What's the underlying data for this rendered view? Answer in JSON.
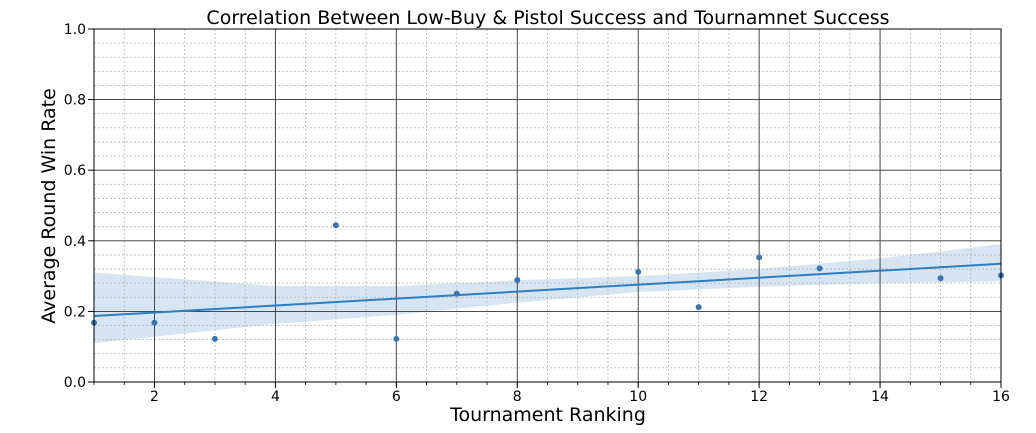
{
  "chart_data": {
    "type": "scatter",
    "title": "Correlation Between Low-Buy & Pistol Success and Tournamnet Success",
    "xlabel": "Tournament Ranking",
    "ylabel": "Average Round Win Rate",
    "xlim": [
      1,
      16
    ],
    "ylim": [
      0.0,
      1.0
    ],
    "xticks": [
      "2",
      "4",
      "6",
      "8",
      "10",
      "12",
      "14",
      "16"
    ],
    "yticks": [
      "0.0",
      "0.2",
      "0.4",
      "0.6",
      "0.8",
      "1.0"
    ],
    "grid": true,
    "series": [
      {
        "points": [
          {
            "x": 1,
            "y": 0.168
          },
          {
            "x": 2,
            "y": 0.168
          },
          {
            "x": 3,
            "y": 0.122
          },
          {
            "x": 5,
            "y": 0.444
          },
          {
            "x": 6,
            "y": 0.122
          },
          {
            "x": 7,
            "y": 0.25
          },
          {
            "x": 8,
            "y": 0.289
          },
          {
            "x": 10,
            "y": 0.312
          },
          {
            "x": 11,
            "y": 0.212
          },
          {
            "x": 12,
            "y": 0.353
          },
          {
            "x": 13,
            "y": 0.322
          },
          {
            "x": 15,
            "y": 0.294
          },
          {
            "x": 16,
            "y": 0.302
          }
        ]
      }
    ],
    "regression_line": {
      "x": [
        1,
        16
      ],
      "y": [
        0.187,
        0.335
      ]
    },
    "confidence_band": {
      "x": [
        1,
        4,
        6,
        8,
        10,
        12,
        14,
        16
      ],
      "lower": [
        0.11,
        0.165,
        0.19,
        0.225,
        0.255,
        0.27,
        0.28,
        0.285
      ],
      "upper": [
        0.31,
        0.272,
        0.272,
        0.288,
        0.3,
        0.32,
        0.35,
        0.39
      ]
    },
    "colors": {
      "points": "#3b75af",
      "line": "#2f7ec0",
      "band": "#c9dbec",
      "major_grid": "#333333",
      "minor_grid": "#b3b3b3"
    }
  }
}
